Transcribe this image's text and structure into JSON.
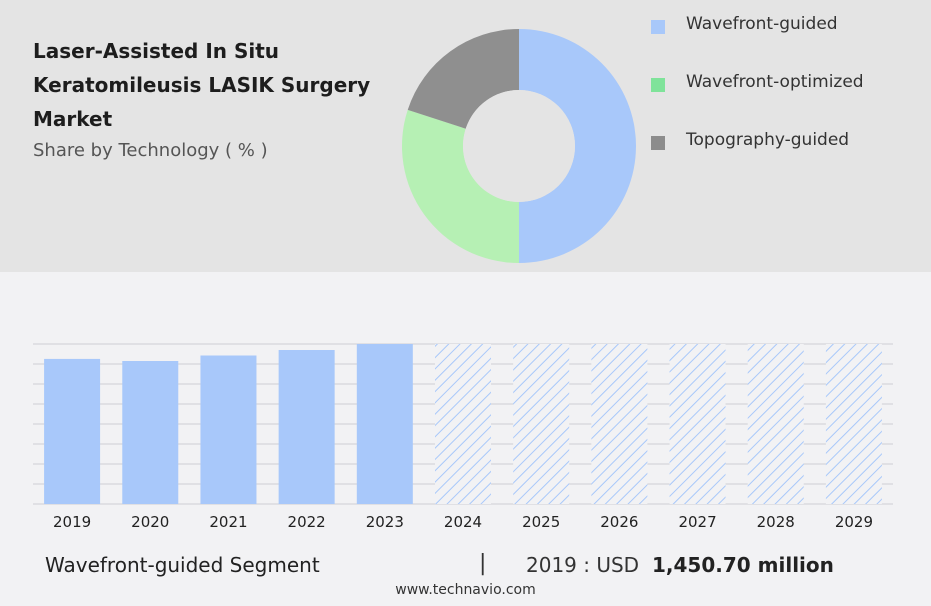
{
  "header": {
    "title": "Laser-Assisted In Situ Keratomileusis LASIK Surgery Market",
    "subtitle": "Share by Technology ( % )"
  },
  "chart_data": [
    {
      "type": "pie",
      "variant": "donut",
      "title": "Laser-Assisted In Situ Keratomileusis LASIK Surgery Market",
      "subtitle": "Share by Technology ( % )",
      "categories": [
        "Wavefront-guided",
        "Wavefront-optimized",
        "Topography-guided"
      ],
      "values": [
        50,
        30,
        20
      ],
      "colors": [
        "#a8c8fa",
        "#b6f0b4",
        "#8f8f8f"
      ],
      "legend_position": "right"
    },
    {
      "type": "bar",
      "categories": [
        "2019",
        "2020",
        "2021",
        "2022",
        "2023",
        "2024",
        "2025",
        "2026",
        "2027",
        "2028",
        "2029"
      ],
      "values": [
        1450.7,
        1430,
        1485,
        1540,
        1600,
        1600,
        1600,
        1600,
        1600,
        1600,
        1600
      ],
      "forecast_start_index": 5,
      "ylim": [
        0,
        1600
      ],
      "grid": true,
      "bar_color": "#a8c8fa",
      "forecast_style": "hatched",
      "xlabel": "",
      "ylabel": ""
    }
  ],
  "legend": {
    "items": [
      {
        "label": "Wavefront-guided",
        "color": "#a8c8fa"
      },
      {
        "label": "Wavefront-optimized",
        "color": "#7fe39a"
      },
      {
        "label": "Topography-guided",
        "color": "#8c8c8c"
      }
    ]
  },
  "summary": {
    "segment_label": "Wavefront-guided Segment",
    "separator": "|",
    "stat_prefix": "2019 : USD",
    "stat_value": "1,450.70 million"
  },
  "footer": {
    "url": "www.technavio.com"
  }
}
